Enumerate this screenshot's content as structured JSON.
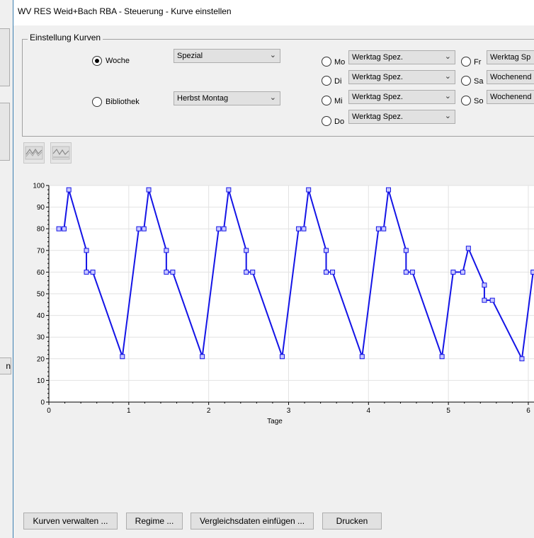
{
  "window": {
    "title": "WV RES Weid+Bach RBA - Steuerung - Kurve einstellen"
  },
  "background": {
    "button_fragment": "n"
  },
  "einstellung": {
    "group_title": "Einstellung Kurven",
    "woche": {
      "label": "Woche",
      "selected": true,
      "value": "Spezial"
    },
    "bibliothek": {
      "label": "Bibliothek",
      "selected": false,
      "value": "Herbst Montag"
    },
    "days": [
      {
        "key": "Mo",
        "value": "Werktag Spez."
      },
      {
        "key": "Di",
        "value": "Werktag Spez."
      },
      {
        "key": "Mi",
        "value": "Werktag Spez."
      },
      {
        "key": "Do",
        "value": "Werktag Spez."
      },
      {
        "key": "Fr",
        "value": "Werktag Sp"
      },
      {
        "key": "Sa",
        "value": "Wochenend"
      },
      {
        "key": "So",
        "value": "Wochenend"
      }
    ]
  },
  "toolbar": {
    "icons": [
      "curve-tool-icon",
      "curve-compare-icon"
    ]
  },
  "chart_data": {
    "type": "line",
    "xlabel": "Tage",
    "ylabel": "",
    "xlim": [
      0,
      6.08
    ],
    "ylim": [
      0,
      100
    ],
    "xticks": [
      "0",
      "1",
      "2",
      "3",
      "4",
      "5",
      "6"
    ],
    "yticks": [
      "0",
      "10",
      "20",
      "30",
      "40",
      "50",
      "60",
      "70",
      "80",
      "90",
      "100"
    ],
    "grid": true,
    "color": "#1414e6",
    "series": [
      {
        "points": [
          [
            0.125,
            80
          ],
          [
            0.19,
            80
          ],
          [
            0.25,
            98
          ],
          [
            0.47,
            70
          ],
          [
            0.47,
            60
          ],
          [
            0.55,
            60
          ],
          [
            0.92,
            21
          ],
          [
            1.125,
            80
          ],
          [
            1.19,
            80
          ],
          [
            1.25,
            98
          ],
          [
            1.47,
            70
          ],
          [
            1.47,
            60
          ],
          [
            1.55,
            60
          ],
          [
            1.92,
            21
          ],
          [
            2.125,
            80
          ],
          [
            2.19,
            80
          ],
          [
            2.25,
            98
          ],
          [
            2.47,
            70
          ],
          [
            2.47,
            60
          ],
          [
            2.55,
            60
          ],
          [
            2.92,
            21
          ],
          [
            3.125,
            80
          ],
          [
            3.19,
            80
          ],
          [
            3.25,
            98
          ],
          [
            3.47,
            70
          ],
          [
            3.47,
            60
          ],
          [
            3.55,
            60
          ],
          [
            3.92,
            21
          ],
          [
            4.125,
            80
          ],
          [
            4.19,
            80
          ],
          [
            4.25,
            98
          ],
          [
            4.47,
            70
          ],
          [
            4.47,
            60
          ],
          [
            4.55,
            60
          ],
          [
            4.92,
            21
          ],
          [
            5.06,
            60
          ],
          [
            5.18,
            60
          ],
          [
            5.25,
            71
          ],
          [
            5.45,
            54
          ],
          [
            5.45,
            47
          ],
          [
            5.55,
            47
          ],
          [
            5.92,
            20
          ],
          [
            6.06,
            60
          ]
        ]
      }
    ]
  },
  "buttons": {
    "kurven": "Kurven verwalten ...",
    "regime": "Regime ...",
    "vergleich": "Vergleichsdaten einfügen ...",
    "drucken": "Drucken"
  }
}
